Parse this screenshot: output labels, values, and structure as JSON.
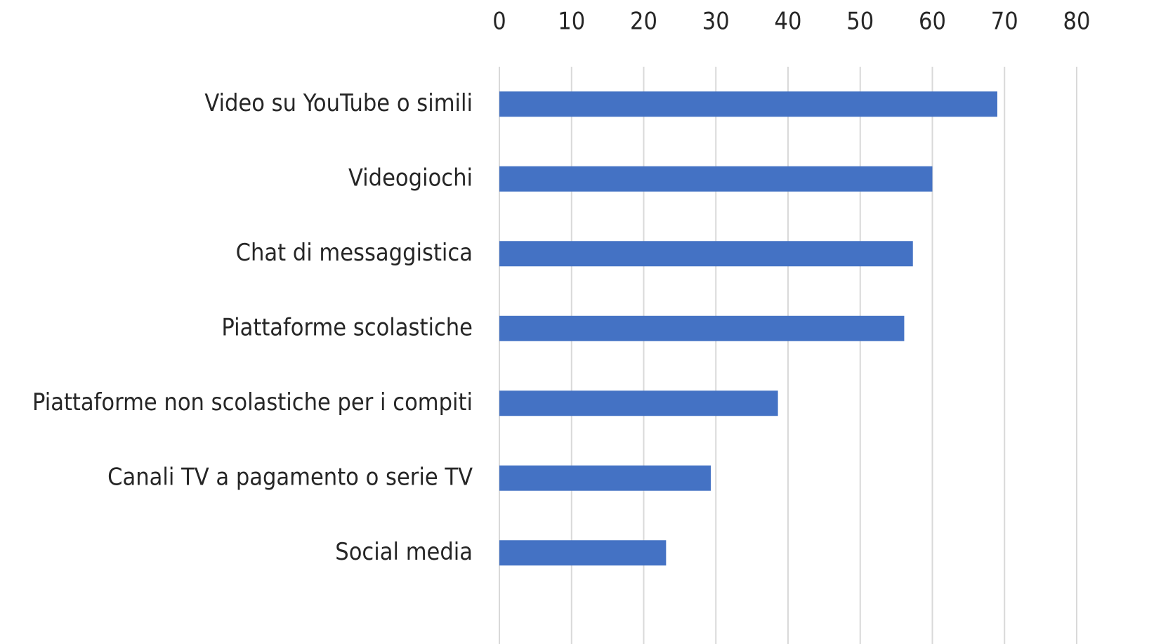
{
  "chart_data": {
    "type": "bar",
    "orientation": "horizontal",
    "categories": [
      "Video su YouTube o simili",
      "Videogiochi",
      "Chat di messaggistica",
      "Piattaforme scolastiche",
      "Piattaforme non scolastiche per i compiti",
      "Canali TV a pagamento o serie TV",
      "Social media"
    ],
    "values": [
      69,
      60,
      57.3,
      56.1,
      38.6,
      29.3,
      23.1
    ],
    "color": "#4472c4",
    "xlim": [
      0,
      80
    ],
    "xticks": [
      0,
      10,
      20,
      30,
      40,
      50,
      60,
      70,
      80
    ],
    "grid": true
  }
}
